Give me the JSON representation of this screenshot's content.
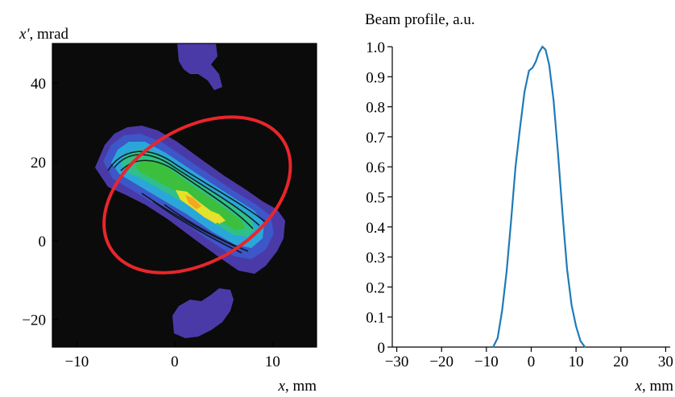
{
  "chart_data": [
    {
      "type": "heatmap",
      "ylabel_var": "x'",
      "ylabel_unit": ", mrad",
      "xlabel_var": "x",
      "xlabel_unit": ", mm",
      "xlim": [
        -12.5,
        14.5
      ],
      "ylim": [
        -27,
        50
      ],
      "xticks": [
        -10,
        0,
        10
      ],
      "yticks": [
        -20,
        0,
        20,
        40
      ],
      "tick_labels_x": [
        "−10",
        "0",
        "10"
      ],
      "tick_labels_y": [
        "−20",
        "0",
        "20",
        "40"
      ],
      "background_color": "#0b0b0b",
      "ellipse": {
        "center": [
          2.3,
          11.6
        ],
        "semi_axes": [
          10.4,
          16.8
        ],
        "angle_deg": 32,
        "color": "#e8262b"
      },
      "colormap": [
        "#4a3aa8",
        "#3d56c8",
        "#2aa7d8",
        "#2fc08a",
        "#3cbf3c",
        "#e6e12a",
        "#f5a623",
        "#e8262b"
      ]
    },
    {
      "type": "line",
      "title": "Beam profile, a.u.",
      "xlabel_var": "x",
      "xlabel_unit": ", mm",
      "xlim": [
        -31,
        31
      ],
      "ylim": [
        0,
        1.0
      ],
      "xticks": [
        -30,
        -20,
        -10,
        0,
        10,
        20,
        30
      ],
      "yticks": [
        0,
        0.1,
        0.2,
        0.3,
        0.4,
        0.5,
        0.6,
        0.7,
        0.8,
        0.9,
        1.0
      ],
      "tick_labels_x": [
        "−30",
        "−20",
        "−10",
        "0",
        "10",
        "20",
        "30"
      ],
      "tick_labels_y": [
        "0",
        "0.1",
        "0.2",
        "0.3",
        "0.4",
        "0.5",
        "0.6",
        "0.7",
        "0.8",
        "0.9",
        "1.0"
      ],
      "line_color": "#1f7ab8",
      "x": [
        -8.5,
        -7.5,
        -6.5,
        -5.5,
        -4.5,
        -3.5,
        -2.5,
        -1.5,
        -0.5,
        0.3,
        1.0,
        1.7,
        2.5,
        3.2,
        4.0,
        5.0,
        6.0,
        7.0,
        8.0,
        9.0,
        10.0,
        11.0,
        12.0
      ],
      "values": [
        0.0,
        0.03,
        0.12,
        0.25,
        0.42,
        0.6,
        0.73,
        0.85,
        0.92,
        0.93,
        0.95,
        0.98,
        1.0,
        0.99,
        0.94,
        0.82,
        0.64,
        0.44,
        0.26,
        0.14,
        0.07,
        0.02,
        0.0
      ]
    }
  ]
}
